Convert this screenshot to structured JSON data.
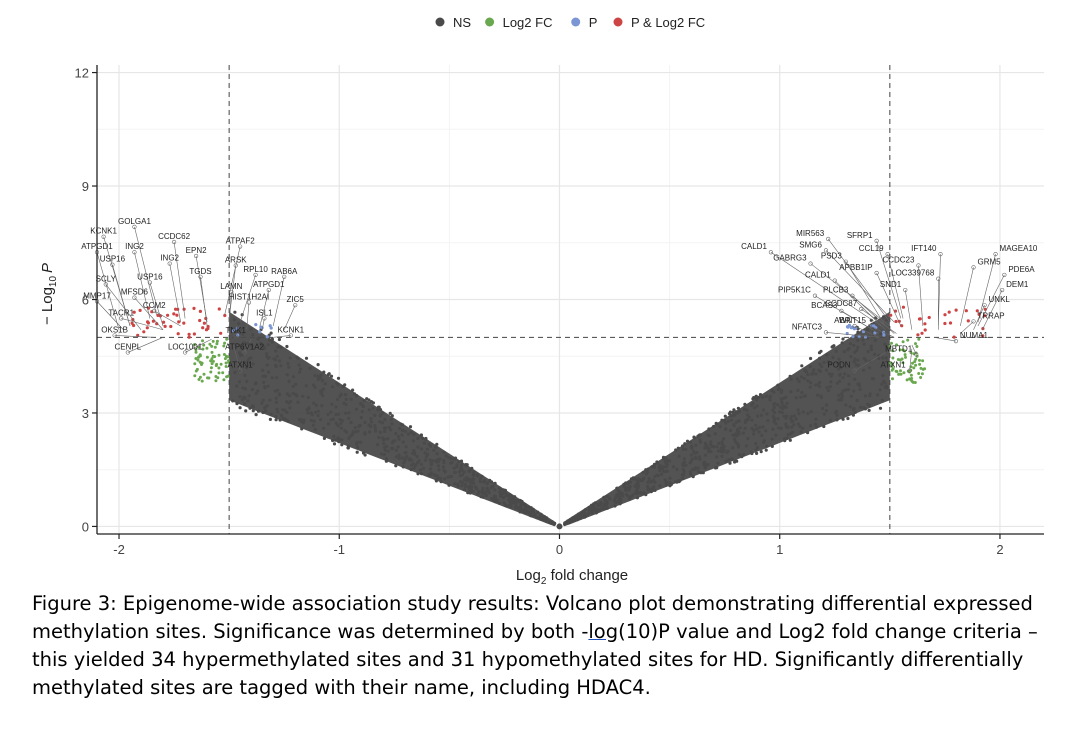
{
  "chart_data": {
    "type": "scatter",
    "xlabel_main": "Log",
    "xlabel_sub": "2",
    "xlabel_rest": " fold change",
    "ylabel_prefix": "− Log",
    "ylabel_sub": "10",
    "ylabel_italic": "P",
    "xlim": [
      -2.1,
      2.2
    ],
    "ylim": [
      -0.2,
      12.2
    ],
    "x_ticks": [
      -2,
      -1,
      0,
      1,
      2
    ],
    "x_tick_labels": [
      "-2",
      "-1",
      "0",
      "1",
      "2"
    ],
    "y_ticks": [
      0,
      3,
      6,
      9,
      12
    ],
    "y_tick_labels": [
      "0",
      "3",
      "6",
      "9",
      "12"
    ],
    "grid": true,
    "legend_position": "top",
    "legend": [
      {
        "label": "NS",
        "color": "#4a4a4a"
      },
      {
        "label": "Log2 FC",
        "color": "#6aa84f"
      },
      {
        "label": "P",
        "color": "#7b96d4"
      },
      {
        "label": "P & Log2 FC",
        "color": "#cc4444"
      }
    ],
    "fc_cutoff": 1.5,
    "p_cutoff": 5,
    "labels_left": [
      {
        "name": "GOLGA1",
        "x": -1.83,
        "y": 5.6,
        "lx": -1.93,
        "ly": 7.92
      },
      {
        "name": "KCNK1",
        "x": -1.95,
        "y": 5.3,
        "lx": -2.07,
        "ly": 7.66
      },
      {
        "name": "CCDC62",
        "x": -1.7,
        "y": 5.5,
        "lx": -1.75,
        "ly": 7.52
      },
      {
        "name": "ATPAF2",
        "x": -1.52,
        "y": 5.6,
        "lx": -1.45,
        "ly": 7.4
      },
      {
        "name": "ATPGD1",
        "x": -2.0,
        "y": 5.2,
        "lx": -2.1,
        "ly": 7.25
      },
      {
        "name": "ING2",
        "x": -1.86,
        "y": 5.5,
        "lx": -1.93,
        "ly": 7.25
      },
      {
        "name": "EPN2",
        "x": -1.6,
        "y": 5.4,
        "lx": -1.65,
        "ly": 7.15
      },
      {
        "name": "USP16",
        "x": -1.95,
        "y": 5.3,
        "lx": -2.03,
        "ly": 6.92
      },
      {
        "name": "ING2",
        "x": -1.72,
        "y": 5.4,
        "lx": -1.77,
        "ly": 6.95
      },
      {
        "name": "ARSK",
        "x": -1.5,
        "y": 5.5,
        "lx": -1.47,
        "ly": 6.9
      },
      {
        "name": "TGDS",
        "x": -1.6,
        "y": 5.3,
        "lx": -1.63,
        "ly": 6.6
      },
      {
        "name": "RPL10",
        "x": -1.45,
        "y": 5.4,
        "lx": -1.38,
        "ly": 6.65
      },
      {
        "name": "RAB6A",
        "x": -1.3,
        "y": 5.3,
        "lx": -1.25,
        "ly": 6.6
      },
      {
        "name": "SCLY",
        "x": -1.9,
        "y": 5.2,
        "lx": -2.06,
        "ly": 6.4
      },
      {
        "name": "USP16",
        "x": -1.8,
        "y": 5.3,
        "lx": -1.86,
        "ly": 6.45
      },
      {
        "name": "LAMN",
        "x": -1.5,
        "y": 5.3,
        "lx": -1.49,
        "ly": 6.2
      },
      {
        "name": "ATPGD1",
        "x": -1.36,
        "y": 5.3,
        "lx": -1.32,
        "ly": 6.25
      },
      {
        "name": "MMP17",
        "x": -1.98,
        "y": 5.2,
        "lx": -2.1,
        "ly": 5.95
      },
      {
        "name": "MFSD6",
        "x": -1.8,
        "y": 5.2,
        "lx": -1.93,
        "ly": 6.05
      },
      {
        "name": "HIST1H2AI",
        "x": -1.42,
        "y": 5.2,
        "lx": -1.41,
        "ly": 5.92
      },
      {
        "name": "ZIC5",
        "x": -1.25,
        "y": 5.2,
        "lx": -1.2,
        "ly": 5.85
      },
      {
        "name": "CCM2",
        "x": -1.72,
        "y": 5.3,
        "lx": -1.84,
        "ly": 5.7
      },
      {
        "name": "TACR1",
        "x": -1.8,
        "y": 5.2,
        "lx": -1.99,
        "ly": 5.5
      },
      {
        "name": "ISL1",
        "x": -1.35,
        "y": 5.2,
        "lx": -1.34,
        "ly": 5.5
      },
      {
        "name": "OKS1B",
        "x": -1.84,
        "y": 5.0,
        "lx": -2.02,
        "ly": 5.05
      },
      {
        "name": "TNK1",
        "x": -1.47,
        "y": 5.0,
        "lx": -1.47,
        "ly": 5.03
      },
      {
        "name": "KCNK1",
        "x": -1.3,
        "y": 5.0,
        "lx": -1.22,
        "ly": 5.05
      },
      {
        "name": "CENPL",
        "x": -1.8,
        "y": 5.0,
        "lx": -1.96,
        "ly": 4.6
      },
      {
        "name": "LOC1001",
        "x": -1.58,
        "y": 4.95,
        "lx": -1.7,
        "ly": 4.6
      },
      {
        "name": "ATP6V1A2",
        "x": -1.4,
        "y": 4.95,
        "lx": -1.43,
        "ly": 4.6
      },
      {
        "name": "ATXN1",
        "x": -1.48,
        "y": 4.8,
        "lx": -1.45,
        "ly": 4.12
      }
    ],
    "labels_right": [
      {
        "name": "MIR563",
        "x": 1.5,
        "y": 5.4,
        "lx": 1.22,
        "ly": 7.6
      },
      {
        "name": "SFRP1",
        "x": 1.55,
        "y": 5.5,
        "lx": 1.44,
        "ly": 7.55
      },
      {
        "name": "CALD1",
        "x": 1.46,
        "y": 5.3,
        "lx": 0.96,
        "ly": 7.25
      },
      {
        "name": "SMG6",
        "x": 1.52,
        "y": 5.4,
        "lx": 1.21,
        "ly": 7.3
      },
      {
        "name": "CCL19",
        "x": 1.56,
        "y": 5.5,
        "lx": 1.49,
        "ly": 7.2
      },
      {
        "name": "IFT140",
        "x": 1.72,
        "y": 5.3,
        "lx": 1.73,
        "ly": 7.2
      },
      {
        "name": "MAGEA10",
        "x": 1.9,
        "y": 5.4,
        "lx": 1.98,
        "ly": 7.2
      },
      {
        "name": "GABRG3",
        "x": 1.5,
        "y": 5.3,
        "lx": 1.14,
        "ly": 6.95
      },
      {
        "name": "PSD3",
        "x": 1.48,
        "y": 5.3,
        "lx": 1.3,
        "ly": 7.0
      },
      {
        "name": "CCDC23",
        "x": 1.65,
        "y": 5.3,
        "lx": 1.63,
        "ly": 6.9
      },
      {
        "name": "GRM5",
        "x": 1.82,
        "y": 5.3,
        "lx": 1.88,
        "ly": 6.85
      },
      {
        "name": "APBB1IP",
        "x": 1.55,
        "y": 5.3,
        "lx": 1.44,
        "ly": 6.7
      },
      {
        "name": "LOC339768",
        "x": 1.72,
        "y": 5.2,
        "lx": 1.72,
        "ly": 6.55
      },
      {
        "name": "PDE6A",
        "x": 1.9,
        "y": 5.3,
        "lx": 2.02,
        "ly": 6.65
      },
      {
        "name": "CALD1",
        "x": 1.48,
        "y": 5.2,
        "lx": 1.25,
        "ly": 6.5
      },
      {
        "name": "SND1",
        "x": 1.6,
        "y": 5.2,
        "lx": 1.57,
        "ly": 6.25
      },
      {
        "name": "DEM1",
        "x": 1.92,
        "y": 5.2,
        "lx": 2.01,
        "ly": 6.25
      },
      {
        "name": "PIP5K1C",
        "x": 1.45,
        "y": 5.1,
        "lx": 1.16,
        "ly": 6.1
      },
      {
        "name": "PLCB3",
        "x": 1.52,
        "y": 5.1,
        "lx": 1.33,
        "ly": 6.1
      },
      {
        "name": "UNKL",
        "x": 1.88,
        "y": 5.2,
        "lx": 1.93,
        "ly": 5.85
      },
      {
        "name": "BCAS3",
        "x": 1.45,
        "y": 5.1,
        "lx": 1.28,
        "ly": 5.7
      },
      {
        "name": "CCDC87",
        "x": 1.53,
        "y": 5.1,
        "lx": 1.37,
        "ly": 5.75
      },
      {
        "name": "TRRAP",
        "x": 1.82,
        "y": 5.1,
        "lx": 1.88,
        "ly": 5.42
      },
      {
        "name": "ABR",
        "x": 1.45,
        "y": 5.0,
        "lx": 1.34,
        "ly": 5.3
      },
      {
        "name": "WNT15",
        "x": 1.52,
        "y": 5.0,
        "lx": 1.41,
        "ly": 5.3
      },
      {
        "name": "NFATC3",
        "x": 1.45,
        "y": 5.0,
        "lx": 1.21,
        "ly": 5.13
      },
      {
        "name": "NUMA1",
        "x": 1.7,
        "y": 5.0,
        "lx": 1.8,
        "ly": 4.9
      },
      {
        "name": "MBTD1",
        "x": 1.6,
        "y": 4.8,
        "lx": 1.62,
        "ly": 4.55
      },
      {
        "name": "ATXN1",
        "x": 1.6,
        "y": 4.7,
        "lx": 1.59,
        "ly": 4.12
      },
      {
        "name": "PODN",
        "x": 1.48,
        "y": 4.6,
        "lx": 1.34,
        "ly": 4.12
      }
    ]
  },
  "caption": {
    "part1": "Figure 3: Epigenome-wide association study results: Volcano plot demonstrating differential expressed methylation sites. Significance was determined by both -",
    "underlined": "log",
    "part2": "(10)P value and Log2 fold change criteria – this yielded 34 hypermethylated sites and 31 hypomethylated sites for HD. Significantly differentially methylated sites are tagged with their name, including HDAC4."
  }
}
